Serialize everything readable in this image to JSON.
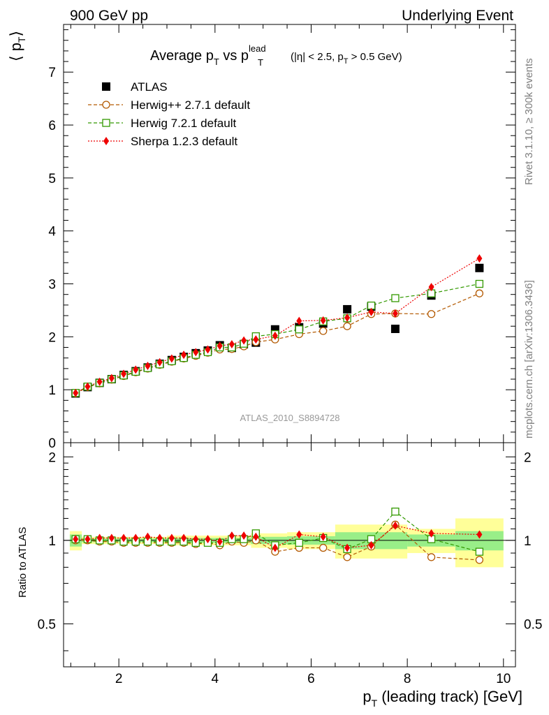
{
  "header": {
    "left": "900 GeV pp",
    "right": "Underlying Event"
  },
  "side": {
    "rivet": "Rivet 3.1.10, ≥ 300k events",
    "url": "mcplots.cern.ch [arXiv:1306.3436]"
  },
  "chart_data": {
    "type": "scatter",
    "title": {
      "main": "Average p",
      "sub1": "T",
      "vs": " vs p",
      "sup": "lead",
      "sub2": "T",
      "cut": "(|η| < 2.5, p",
      "cut_sub": "T",
      "cut_end": " > 0.5 GeV)"
    },
    "ylabel_main": "⟨ p",
    "ylabel_sub": "T",
    "ylabel_close": "⟩",
    "ylabel_ratio": "Ratio to ATLAS",
    "xlabel": "p",
    "xlabel_sub": "T",
    "xlabel_rest": " (leading track) [GeV]",
    "watermark": "ATLAS_2010_S8894728",
    "xlim": [
      0.85,
      10.25
    ],
    "ylim": [
      0,
      7.9
    ],
    "ratio_ylim": [
      0.35,
      2.25
    ],
    "x_ticks": [
      2,
      4,
      6,
      8,
      10
    ],
    "y_ticks": [
      0,
      1,
      2,
      3,
      4,
      5,
      6,
      7
    ],
    "ratio_ticks": [
      0.5,
      1,
      2
    ],
    "ratio_tick_labels": [
      "0.5",
      "1",
      "2"
    ],
    "x": [
      1.1,
      1.35,
      1.6,
      1.85,
      2.1,
      2.35,
      2.6,
      2.85,
      3.1,
      3.35,
      3.6,
      3.85,
      4.1,
      4.35,
      4.6,
      4.85,
      5.25,
      5.75,
      6.25,
      6.75,
      7.25,
      7.75,
      8.5,
      9.5
    ],
    "data": {
      "name": "ATLAS",
      "color": "#000000",
      "values": [
        0.93,
        1.05,
        1.13,
        1.2,
        1.28,
        1.35,
        1.42,
        1.49,
        1.56,
        1.62,
        1.69,
        1.74,
        1.84,
        1.79,
        1.86,
        1.89,
        2.14,
        2.18,
        2.25,
        2.52,
        2.57,
        2.15,
        2.78,
        3.3
      ]
    },
    "series": [
      {
        "name": "Herwig++ 2.7.1 default",
        "color": "#b35900",
        "marker": "circle",
        "values": [
          0.93,
          1.05,
          1.12,
          1.19,
          1.26,
          1.33,
          1.4,
          1.47,
          1.53,
          1.59,
          1.64,
          1.7,
          1.76,
          1.77,
          1.82,
          1.9,
          1.95,
          2.05,
          2.11,
          2.2,
          2.43,
          2.44,
          2.43,
          2.82
        ]
      },
      {
        "name": "Herwig 7.2.1 default",
        "color": "#339900",
        "marker": "square",
        "values": [
          0.94,
          1.06,
          1.13,
          1.2,
          1.27,
          1.34,
          1.41,
          1.48,
          1.54,
          1.6,
          1.66,
          1.71,
          1.8,
          1.8,
          1.87,
          2.01,
          2.05,
          2.14,
          2.29,
          2.35,
          2.59,
          2.73,
          2.82,
          3.0
        ]
      },
      {
        "name": "Sherpa 1.2.3 default",
        "color": "#ee0000",
        "marker": "diamond",
        "values": [
          0.94,
          1.06,
          1.15,
          1.22,
          1.3,
          1.38,
          1.45,
          1.52,
          1.59,
          1.66,
          1.71,
          1.76,
          1.83,
          1.86,
          1.93,
          1.95,
          2.02,
          2.3,
          2.31,
          2.36,
          2.47,
          2.44,
          2.94,
          3.48
        ]
      }
    ],
    "ratio": {
      "Herwig++ 2.7.1 default": [
        1.0,
        1.0,
        0.99,
        0.99,
        0.98,
        0.98,
        0.98,
        0.98,
        0.98,
        0.98,
        0.97,
        0.98,
        0.96,
        0.99,
        0.98,
        1.0,
        0.91,
        0.94,
        0.94,
        0.87,
        0.95,
        1.14,
        0.87,
        0.85
      ],
      "Herwig 7.2.1 default": [
        1.01,
        1.01,
        1.0,
        1.0,
        0.99,
        0.99,
        0.99,
        0.99,
        0.99,
        0.99,
        0.98,
        0.98,
        0.98,
        1.01,
        1.01,
        1.06,
        0.96,
        0.98,
        1.02,
        0.93,
        1.01,
        1.27,
        1.01,
        0.91
      ],
      "Sherpa 1.2.3 default": [
        1.01,
        1.01,
        1.02,
        1.02,
        1.02,
        1.02,
        1.03,
        1.02,
        1.02,
        1.02,
        1.01,
        1.01,
        0.99,
        1.04,
        1.04,
        1.03,
        0.94,
        1.05,
        1.03,
        0.94,
        0.96,
        1.13,
        1.06,
        1.05
      ]
    },
    "bands": [
      {
        "x": [
          0.98,
          1.23
        ],
        "inner": 0.05,
        "outer": 0.08
      },
      {
        "x": [
          1.23,
          3.0
        ],
        "inner": 0.015,
        "outer": 0.03
      },
      {
        "x": [
          3.0,
          4.75
        ],
        "inner": 0.02,
        "outer": 0.04
      },
      {
        "x": [
          4.75,
          5.5
        ],
        "inner": 0.03,
        "outer": 0.06
      },
      {
        "x": [
          5.5,
          6.5
        ],
        "inner": 0.035,
        "outer": 0.07
      },
      {
        "x": [
          6.5,
          8.0
        ],
        "inner": 0.07,
        "outer": 0.14
      },
      {
        "x": [
          8.0,
          9.0
        ],
        "inner": 0.05,
        "outer": 0.1
      },
      {
        "x": [
          9.0,
          10.0
        ],
        "inner": 0.08,
        "outer": 0.2
      }
    ]
  }
}
